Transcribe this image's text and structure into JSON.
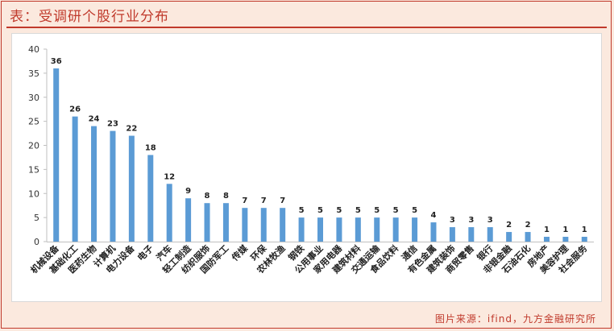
{
  "header": {
    "title": "表：受调研个股行业分布"
  },
  "footer": {
    "source": "图片来源：ifind，九方金融研究所"
  },
  "chart_data": {
    "type": "bar",
    "title": "",
    "xlabel": "",
    "ylabel": "",
    "ylim": [
      0,
      40
    ],
    "yticks": [
      0,
      5,
      10,
      15,
      20,
      25,
      30,
      35,
      40
    ],
    "grid": false,
    "legend": "none",
    "bar_color": "#5b9bd5",
    "categories": [
      "机械设备",
      "基础化工",
      "医药生物",
      "计算机",
      "电力设备",
      "电子",
      "汽车",
      "轻工制造",
      "纺织服饰",
      "国防军工",
      "传媒",
      "环保",
      "农林牧渔",
      "钢铁",
      "公用事业",
      "家用电器",
      "建筑材料",
      "交通运输",
      "食品饮料",
      "通信",
      "有色金属",
      "建筑装饰",
      "商贸零售",
      "银行",
      "非银金融",
      "石油石化",
      "房地产",
      "美容护理",
      "社会服务"
    ],
    "values": [
      36,
      26,
      24,
      23,
      22,
      18,
      12,
      9,
      8,
      8,
      7,
      7,
      7,
      5,
      5,
      5,
      5,
      5,
      5,
      5,
      4,
      3,
      3,
      3,
      2,
      2,
      1,
      1,
      1
    ]
  }
}
